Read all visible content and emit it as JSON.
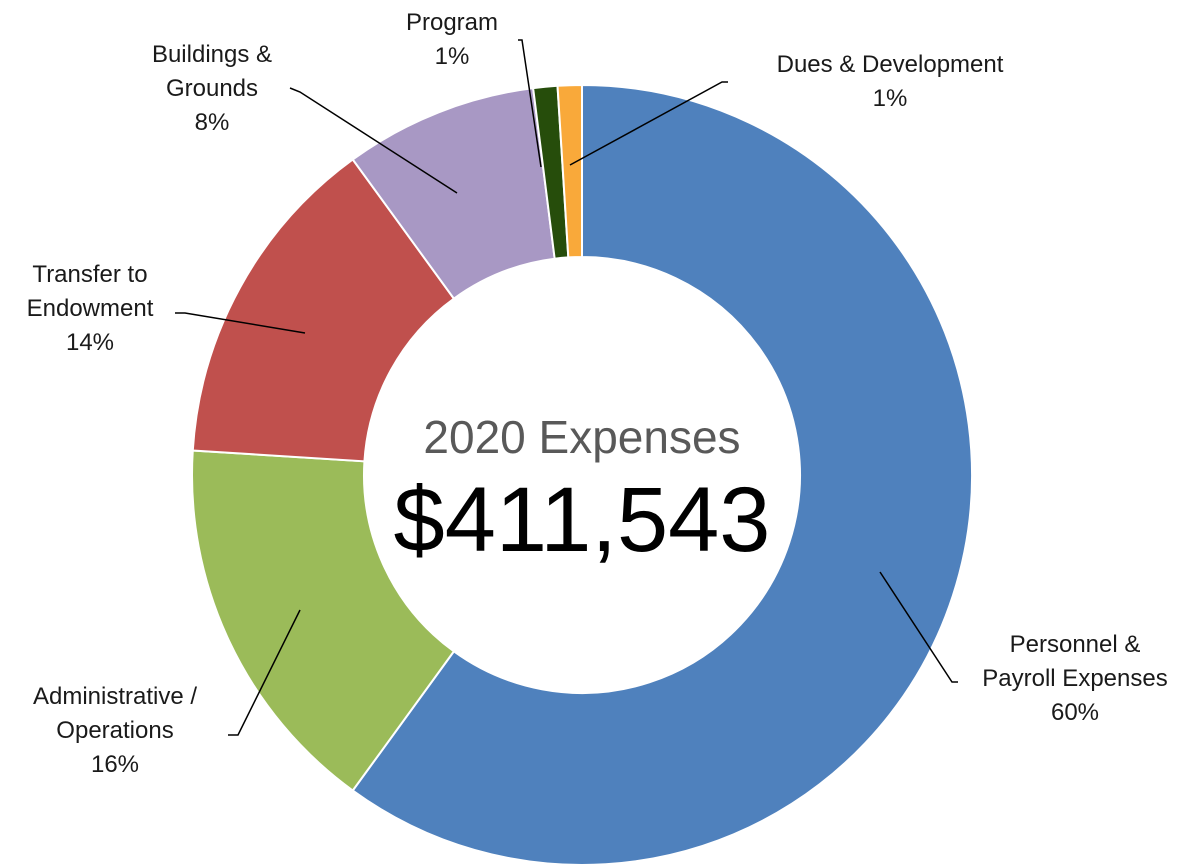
{
  "chart_data": {
    "type": "donut",
    "center_title": "2020 Expenses",
    "center_value": "$411,543",
    "categories": [
      "Personnel & Payroll Expenses",
      "Administrative / Operations",
      "Transfer to Endowment",
      "Buildings & Grounds",
      "Program",
      "Dues & Development"
    ],
    "values": [
      60,
      16,
      14,
      8,
      1,
      1
    ],
    "value_labels": [
      "60%",
      "16%",
      "14%",
      "8%",
      "1%",
      "1%"
    ],
    "colors": [
      "#4f81bd",
      "#9bbb59",
      "#c0504d",
      "#a898c4",
      "#264d0b",
      "#f9a93a"
    ]
  }
}
